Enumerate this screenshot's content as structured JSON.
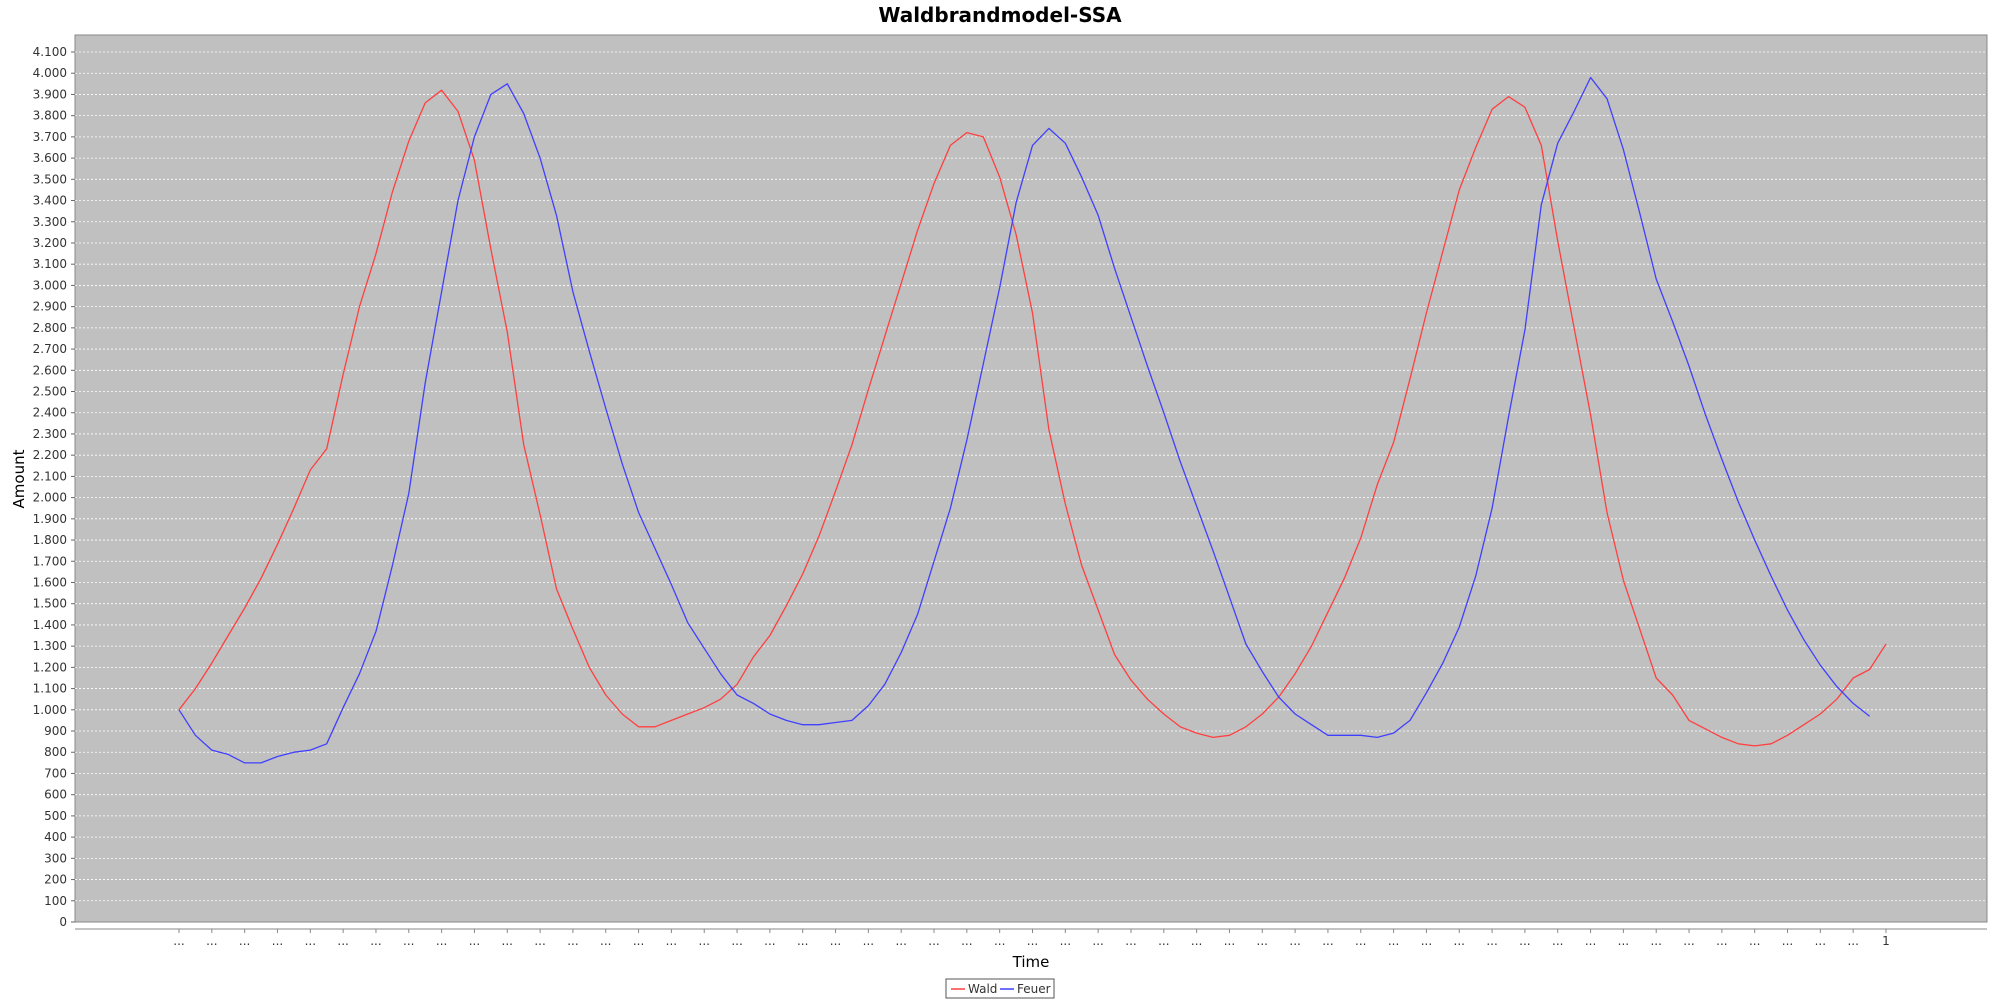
{
  "colors": {
    "plot_bg": "#c0c0c0",
    "gridline": "#ffffff",
    "wald": "#ff4040",
    "feuer": "#4040ff"
  },
  "chart_data": {
    "type": "line",
    "title": "Waldbrandmodel-SSA",
    "xlabel": "Time",
    "ylabel": "Amount",
    "ylim": [
      0,
      4200
    ],
    "y_ticks": [
      0,
      100,
      200,
      300,
      400,
      500,
      600,
      700,
      800,
      900,
      1000,
      1100,
      1200,
      1300,
      1400,
      1500,
      1600,
      1700,
      1800,
      1900,
      2000,
      2100,
      2200,
      2300,
      2400,
      2500,
      2600,
      2700,
      2800,
      2900,
      3000,
      3100,
      3200,
      3300,
      3400,
      3500,
      3600,
      3700,
      3800,
      3900,
      4000,
      4100
    ],
    "y_tick_labels": [
      "0",
      "100",
      "200",
      "300",
      "400",
      "500",
      "600",
      "700",
      "800",
      "900",
      "1.000",
      "1.100",
      "1.200",
      "1.300",
      "1.400",
      "1.500",
      "1.600",
      "1.700",
      "1.800",
      "1.900",
      "2.000",
      "2.100",
      "2.200",
      "2.300",
      "2.400",
      "2.500",
      "2.600",
      "2.700",
      "2.800",
      "2.900",
      "3.000",
      "3.100",
      "3.200",
      "3.300",
      "3.400",
      "3.500",
      "3.600",
      "3.700",
      "3.800",
      "3.900",
      "4.000",
      "4.100"
    ],
    "x_tick_truncated_label": "...",
    "x_last_tick_label": "1",
    "grid": true,
    "legend_position": "bottom",
    "series": [
      {
        "name": "Wald",
        "color": "#ff4040",
        "values": [
          1000,
          1100,
          1220,
          1350,
          1480,
          1620,
          1780,
          1950,
          2130,
          2230,
          2580,
          2900,
          3150,
          3440,
          3680,
          3860,
          3920,
          3820,
          3590,
          3170,
          2780,
          2250,
          1920,
          1570,
          1380,
          1200,
          1070,
          980,
          920,
          920,
          950,
          980,
          1010,
          1050,
          1120,
          1250,
          1350,
          1490,
          1640,
          1820,
          2030,
          2250,
          2510,
          2760,
          3010,
          3260,
          3480,
          3660,
          3720,
          3700,
          3510,
          3240,
          2870,
          2320,
          1970,
          1680,
          1470,
          1260,
          1140,
          1050,
          980,
          920,
          890,
          870,
          880,
          920,
          980,
          1060,
          1170,
          1300,
          1460,
          1620,
          1810,
          2060,
          2260,
          2560,
          2870,
          3160,
          3450,
          3650,
          3830,
          3890,
          3840,
          3660,
          3210,
          2800,
          2390,
          1930,
          1610,
          1380,
          1150,
          1070,
          950,
          910,
          870,
          840,
          830,
          840,
          880,
          930,
          980,
          1050,
          1150,
          1190,
          1310
        ]
      },
      {
        "name": "Feuer",
        "color": "#4040ff",
        "values": [
          1000,
          880,
          810,
          790,
          750,
          750,
          780,
          800,
          810,
          840,
          1010,
          1170,
          1370,
          1680,
          2020,
          2540,
          2970,
          3400,
          3700,
          3900,
          3950,
          3810,
          3600,
          3330,
          2970,
          2690,
          2420,
          2160,
          1930,
          1760,
          1590,
          1410,
          1290,
          1170,
          1070,
          1030,
          980,
          950,
          930,
          930,
          940,
          950,
          1020,
          1120,
          1270,
          1450,
          1700,
          1950,
          2270,
          2630,
          2990,
          3390,
          3660,
          3740,
          3670,
          3510,
          3330,
          3080,
          2850,
          2620,
          2400,
          2170,
          1960,
          1750,
          1530,
          1310,
          1180,
          1060,
          980,
          930,
          880,
          880,
          880,
          870,
          890,
          950,
          1080,
          1220,
          1390,
          1630,
          1950,
          2380,
          2790,
          3380,
          3670,
          3820,
          3980,
          3880,
          3640,
          3340,
          3030,
          2830,
          2620,
          2390,
          2180,
          1980,
          1800,
          1630,
          1470,
          1330,
          1210,
          1110,
          1030,
          970
        ]
      }
    ]
  }
}
